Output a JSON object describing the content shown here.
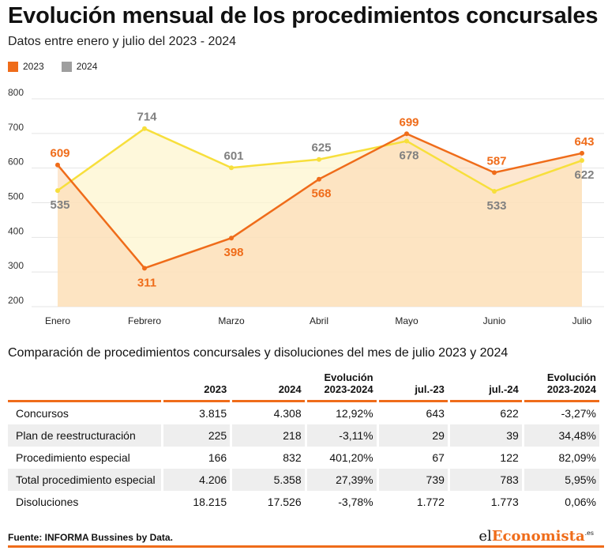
{
  "header": {
    "title": "Evolución mensual de los procedimientos concursales",
    "subtitle": "Datos entre enero y julio del 2023 - 2024"
  },
  "colors": {
    "orange": "#ef6c1a",
    "yellow": "#f7df3c",
    "grey": "#9e9e9e"
  },
  "chart_data": {
    "type": "line",
    "categories": [
      "Enero",
      "Febrero",
      "Marzo",
      "Abril",
      "Mayo",
      "Junio",
      "Julio"
    ],
    "series": [
      {
        "name": "2023",
        "values": [
          609,
          311,
          398,
          568,
          699,
          587,
          643
        ],
        "color": "#ef6c1a",
        "label_color": "#ef6c1a"
      },
      {
        "name": "2024",
        "values": [
          535,
          714,
          601,
          625,
          678,
          533,
          622
        ],
        "color": "#f7df3c",
        "label_color": "#808080",
        "legend_color": "#9e9e9e"
      }
    ],
    "y_ticks": [
      200,
      300,
      400,
      500,
      600,
      700,
      800
    ],
    "ylim": [
      200,
      800
    ],
    "grid": true,
    "legend": "top-left"
  },
  "table": {
    "title": "Comparación de procedimientos concursales y disoluciones del mes de julio 2023 y 2024",
    "headers": [
      "",
      "2023",
      "2024",
      "Evolución 2023-2024",
      "jul.-23",
      "jul.-24",
      "Evolución 2023-2024"
    ],
    "rows": [
      [
        "Concursos",
        "3.815",
        "4.308",
        "12,92%",
        "643",
        "622",
        "-3,27%"
      ],
      [
        "Plan de reestructuración",
        "225",
        "218",
        "-3,11%",
        "29",
        "39",
        "34,48%"
      ],
      [
        "Procedimiento especial",
        "166",
        "832",
        "401,20%",
        "67",
        "122",
        "82,09%"
      ],
      [
        "Total procedimiento especial",
        "4.206",
        "5.358",
        "27,39%",
        "739",
        "783",
        "5,95%"
      ],
      [
        "Disoluciones",
        "18.215",
        "17.526",
        "-3,78%",
        "1.772",
        "1.773",
        "0,06%"
      ]
    ]
  },
  "footer": {
    "source": "Fuente: INFORMA Bussines by Data.",
    "logo_pre": "el",
    "logo_brand": "Economista",
    "logo_suffix": ".es"
  }
}
